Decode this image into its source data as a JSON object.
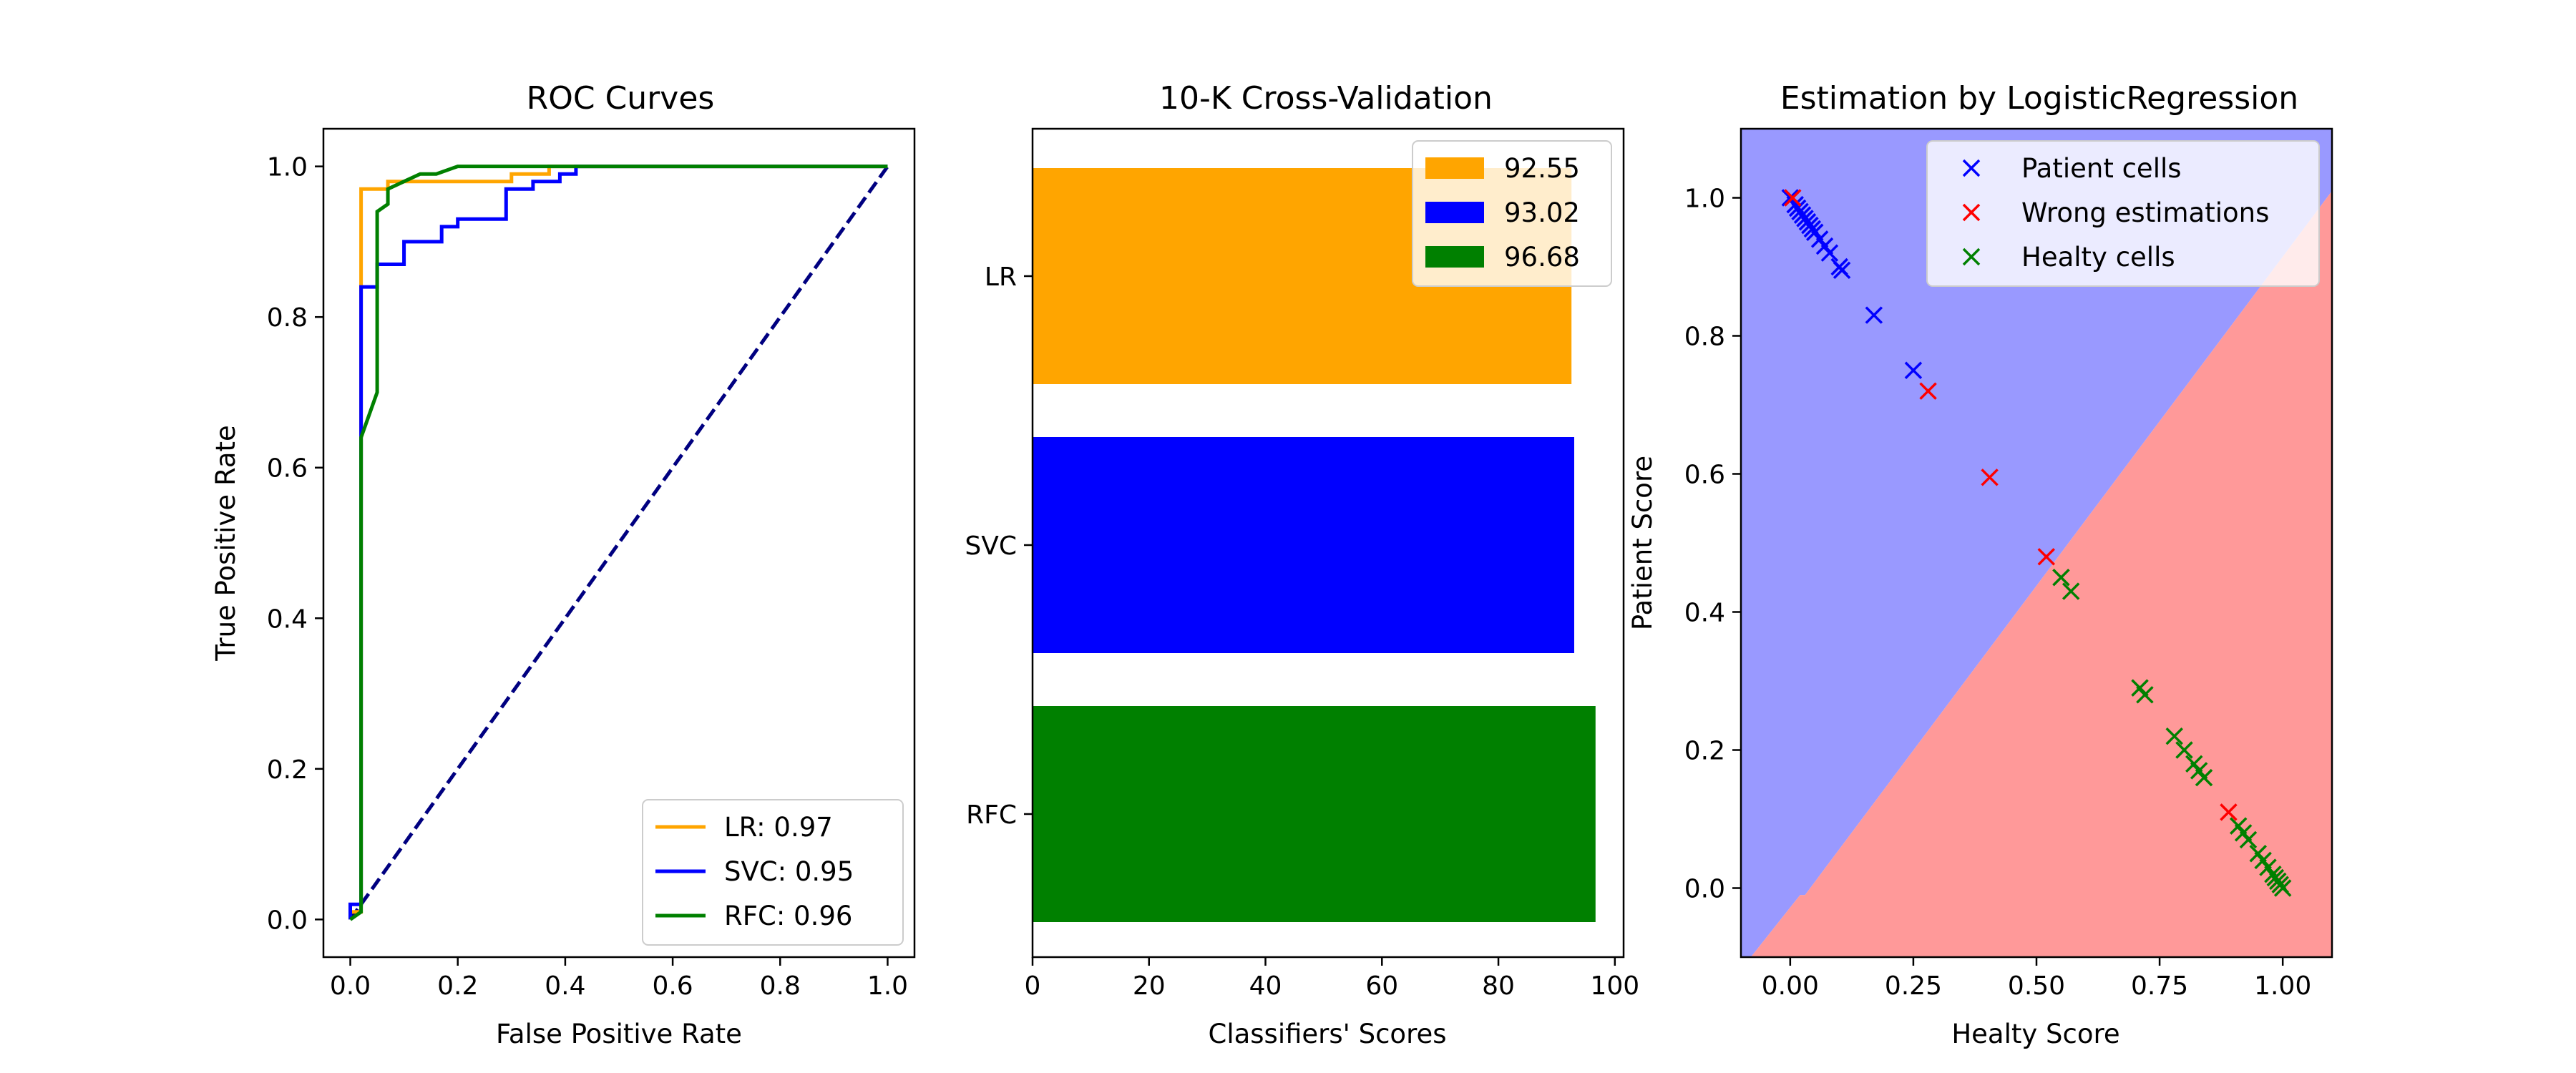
{
  "chart_data": [
    {
      "type": "line",
      "title": "ROC Curves",
      "xlabel": "False Positive Rate",
      "ylabel": "True Positive Rate",
      "xlim": [
        -0.05,
        1.05
      ],
      "ylim": [
        -0.05,
        1.05
      ],
      "xticks": [
        0.0,
        0.2,
        0.4,
        0.6,
        0.8,
        1.0
      ],
      "yticks": [
        0.0,
        0.2,
        0.4,
        0.6,
        0.8,
        1.0
      ],
      "xtick_labels": [
        "0.0",
        "0.2",
        "0.4",
        "0.6",
        "0.8",
        "1.0"
      ],
      "ytick_labels": [
        "0.0",
        "0.2",
        "0.4",
        "0.6",
        "0.8",
        "1.0"
      ],
      "legend_position": "lower-right",
      "series": [
        {
          "name": "LR: 0.97",
          "color": "#ffa500",
          "points": [
            [
              0,
              0
            ],
            [
              0,
              0.01
            ],
            [
              0.02,
              0.01
            ],
            [
              0.02,
              0.97
            ],
            [
              0.07,
              0.97
            ],
            [
              0.07,
              0.98
            ],
            [
              0.16,
              0.98
            ],
            [
              0.16,
              0.98
            ],
            [
              0.3,
              0.98
            ],
            [
              0.3,
              0.99
            ],
            [
              0.37,
              0.99
            ],
            [
              0.37,
              1.0
            ],
            [
              1.0,
              1.0
            ]
          ]
        },
        {
          "name": "SVC: 0.95",
          "color": "#0000ff",
          "points": [
            [
              0,
              0
            ],
            [
              0,
              0.02
            ],
            [
              0.02,
              0.02
            ],
            [
              0.02,
              0.84
            ],
            [
              0.05,
              0.84
            ],
            [
              0.05,
              0.87
            ],
            [
              0.1,
              0.87
            ],
            [
              0.1,
              0.9
            ],
            [
              0.17,
              0.9
            ],
            [
              0.17,
              0.92
            ],
            [
              0.2,
              0.92
            ],
            [
              0.2,
              0.93
            ],
            [
              0.23,
              0.93
            ],
            [
              0.23,
              0.93
            ],
            [
              0.29,
              0.93
            ],
            [
              0.29,
              0.97
            ],
            [
              0.34,
              0.97
            ],
            [
              0.34,
              0.98
            ],
            [
              0.39,
              0.98
            ],
            [
              0.39,
              0.99
            ],
            [
              0.42,
              0.99
            ],
            [
              0.42,
              1.0
            ],
            [
              1.0,
              1.0
            ]
          ]
        },
        {
          "name": "RFC: 0.96",
          "color": "#008000",
          "points": [
            [
              0,
              0
            ],
            [
              0.02,
              0.01
            ],
            [
              0.02,
              0.64
            ],
            [
              0.05,
              0.7
            ],
            [
              0.05,
              0.94
            ],
            [
              0.07,
              0.95
            ],
            [
              0.07,
              0.97
            ],
            [
              0.1,
              0.98
            ],
            [
              0.13,
              0.99
            ],
            [
              0.16,
              0.99
            ],
            [
              0.2,
              1.0
            ],
            [
              1.0,
              1.0
            ]
          ]
        }
      ],
      "reference_line": {
        "color": "#000080",
        "style": "dashed",
        "points": [
          [
            0,
            0
          ],
          [
            1,
            1
          ]
        ]
      }
    },
    {
      "type": "bar",
      "orientation": "horizontal",
      "title": "10-K Cross-Validation",
      "xlabel": "Classifiers' Scores",
      "ylabel": "",
      "categories": [
        "LR",
        "SVC",
        "RFC"
      ],
      "values": [
        92.55,
        93.02,
        96.68
      ],
      "colors": [
        "#ffa500",
        "#0000ff",
        "#008000"
      ],
      "legend_labels": [
        "92.55",
        "93.02",
        "96.68"
      ],
      "legend_position": "upper-right",
      "xlim": [
        0,
        101.5
      ],
      "xticks": [
        0,
        20,
        40,
        60,
        80,
        100
      ],
      "xtick_labels": [
        "0",
        "20",
        "40",
        "60",
        "80",
        "100"
      ]
    },
    {
      "type": "scatter",
      "title": "Estimation by LogisticRegression",
      "xlabel": "Healty Score",
      "ylabel": "Patient Score",
      "xlim": [
        -0.1,
        1.1
      ],
      "ylim": [
        -0.1,
        1.1
      ],
      "xticks": [
        0.0,
        0.25,
        0.5,
        0.75,
        1.0
      ],
      "yticks": [
        0.0,
        0.2,
        0.4,
        0.6,
        0.8,
        1.0
      ],
      "xtick_labels": [
        "0.00",
        "0.25",
        "0.50",
        "0.75",
        "1.00"
      ],
      "ytick_labels": [
        "0.0",
        "0.2",
        "0.4",
        "0.6",
        "0.8",
        "1.0"
      ],
      "legend_position": "upper-right",
      "background_regions": [
        {
          "name": "patient-region",
          "color": "#9999ff"
        },
        {
          "name": "healthy-region",
          "color": "#ff9999"
        }
      ],
      "decision_boundary": [
        [
          -0.08,
          -0.1
        ],
        [
          0.02,
          -0.01
        ],
        [
          0.03,
          -0.01
        ],
        [
          1.1,
          1.01
        ]
      ],
      "series": [
        {
          "name": "Patient cells",
          "color": "#0000ff",
          "marker": "x",
          "points": [
            [
              0.0,
              1.0
            ],
            [
              0.01,
              0.99
            ],
            [
              0.015,
              0.985
            ],
            [
              0.02,
              0.98
            ],
            [
              0.025,
              0.975
            ],
            [
              0.03,
              0.97
            ],
            [
              0.035,
              0.965
            ],
            [
              0.04,
              0.96
            ],
            [
              0.045,
              0.955
            ],
            [
              0.05,
              0.95
            ],
            [
              0.06,
              0.94
            ],
            [
              0.07,
              0.93
            ],
            [
              0.08,
              0.92
            ],
            [
              0.1,
              0.9
            ],
            [
              0.105,
              0.895
            ],
            [
              0.17,
              0.83
            ],
            [
              0.25,
              0.75
            ]
          ]
        },
        {
          "name": "Wrong estimations",
          "color": "#ff0000",
          "marker": "x",
          "points": [
            [
              0.005,
              1.0
            ],
            [
              0.28,
              0.72
            ],
            [
              0.405,
              0.595
            ],
            [
              0.52,
              0.48
            ],
            [
              0.89,
              0.11
            ]
          ]
        },
        {
          "name": "Healty cells",
          "color": "#008000",
          "marker": "x",
          "points": [
            [
              0.55,
              0.45
            ],
            [
              0.57,
              0.43
            ],
            [
              0.71,
              0.29
            ],
            [
              0.72,
              0.28
            ],
            [
              0.78,
              0.22
            ],
            [
              0.8,
              0.2
            ],
            [
              0.82,
              0.18
            ],
            [
              0.83,
              0.17
            ],
            [
              0.84,
              0.16
            ],
            [
              0.91,
              0.09
            ],
            [
              0.92,
              0.08
            ],
            [
              0.93,
              0.07
            ],
            [
              0.95,
              0.05
            ],
            [
              0.96,
              0.04
            ],
            [
              0.97,
              0.03
            ],
            [
              0.98,
              0.02
            ],
            [
              0.985,
              0.015
            ],
            [
              0.99,
              0.01
            ],
            [
              0.995,
              0.005
            ],
            [
              1.0,
              0.0
            ]
          ]
        }
      ]
    }
  ]
}
